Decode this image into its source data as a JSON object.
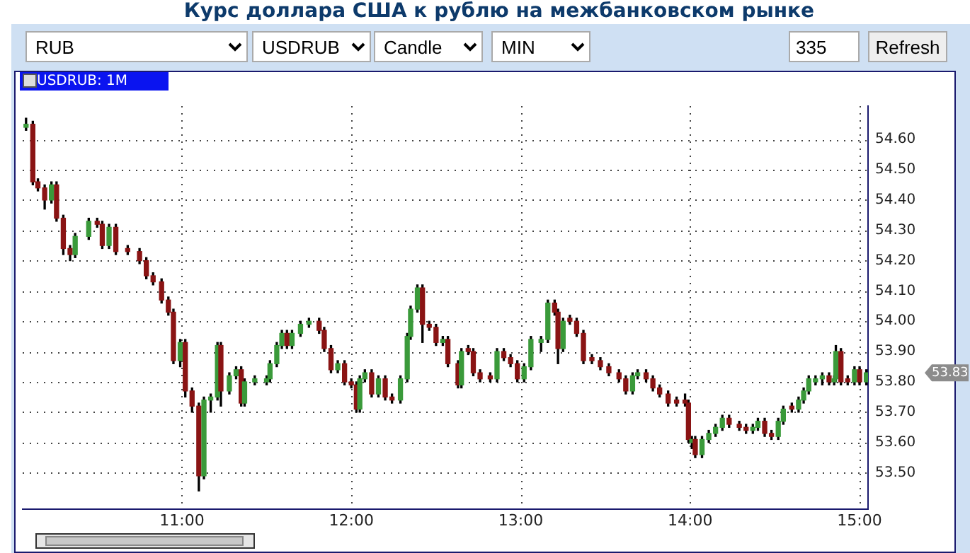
{
  "chart_data": {
    "type": "candlestick",
    "title": "Курс доллара США к рублю на межбанковском рынке",
    "annotations": [
      "RUB",
      "USDRUB",
      "Candle",
      "MIN",
      "335",
      "Refresh",
      "USDRUB: 1M",
      "53.83"
    ],
    "x": [
      10.08,
      10.12,
      10.15,
      10.19,
      10.23,
      10.26,
      10.3,
      10.34,
      10.37,
      10.45,
      10.5,
      10.53,
      10.57,
      10.61,
      10.68,
      10.75,
      10.79,
      10.83,
      10.88,
      10.92,
      10.95,
      10.99,
      11.02,
      11.06,
      11.1,
      11.13,
      11.17,
      11.21,
      11.23,
      11.28,
      11.32,
      11.35,
      11.37,
      11.43,
      11.5,
      11.52,
      11.56,
      11.59,
      11.62,
      11.65,
      11.7,
      11.75,
      11.81,
      11.84,
      11.88,
      11.92,
      11.96,
      12.0,
      12.03,
      12.05,
      12.08,
      12.12,
      12.16,
      12.2,
      12.24,
      12.29,
      12.33,
      12.35,
      12.39,
      12.42,
      12.46,
      12.5,
      12.54,
      12.57,
      12.63,
      12.65,
      12.69,
      12.72,
      12.76,
      12.82,
      12.86,
      12.9,
      12.94,
      12.98,
      13.02,
      13.06,
      13.12,
      13.16,
      13.2,
      13.22,
      13.25,
      13.29,
      13.33,
      13.37,
      13.42,
      13.47,
      13.52,
      13.58,
      13.62,
      13.66,
      13.69,
      13.74,
      13.78,
      13.82,
      13.87,
      13.92,
      13.97,
      13.99,
      14.01,
      14.03,
      14.07,
      14.11,
      14.15,
      14.19,
      14.23,
      14.29,
      14.33,
      14.37,
      14.4,
      14.44,
      14.48,
      14.52,
      14.55,
      14.6,
      14.64,
      14.67,
      14.7,
      14.74,
      14.78,
      14.82,
      14.85,
      14.86,
      14.89,
      14.93,
      14.97,
      15.0,
      15.04
    ],
    "ohlc": [
      [
        54.64,
        54.67,
        54.63,
        54.65
      ],
      [
        54.65,
        54.66,
        54.45,
        54.46
      ],
      [
        54.46,
        54.47,
        54.43,
        54.44
      ],
      [
        54.44,
        54.45,
        54.37,
        54.4
      ],
      [
        54.4,
        54.46,
        54.39,
        54.45
      ],
      [
        54.45,
        54.46,
        54.33,
        54.34
      ],
      [
        54.34,
        54.35,
        54.22,
        54.24
      ],
      [
        54.24,
        54.25,
        54.2,
        54.22
      ],
      [
        54.22,
        54.29,
        54.21,
        54.28
      ],
      [
        54.28,
        54.34,
        54.27,
        54.33
      ],
      [
        54.33,
        54.34,
        54.31,
        54.32
      ],
      [
        54.32,
        54.33,
        54.24,
        54.25
      ],
      [
        54.25,
        54.32,
        54.24,
        54.31
      ],
      [
        54.31,
        54.32,
        54.22,
        54.23
      ],
      [
        54.24,
        54.25,
        54.22,
        54.23
      ],
      [
        54.23,
        54.24,
        54.19,
        54.2
      ],
      [
        54.2,
        54.21,
        54.14,
        54.15
      ],
      [
        54.15,
        54.16,
        54.12,
        54.13
      ],
      [
        54.13,
        54.14,
        54.06,
        54.07
      ],
      [
        54.07,
        54.08,
        54.02,
        54.03
      ],
      [
        54.03,
        54.04,
        53.86,
        53.87
      ],
      [
        53.87,
        53.94,
        53.85,
        53.93
      ],
      [
        53.93,
        53.94,
        53.75,
        53.77
      ],
      [
        53.77,
        53.78,
        53.7,
        53.72
      ],
      [
        53.72,
        53.73,
        53.44,
        53.49
      ],
      [
        53.49,
        53.75,
        53.48,
        53.74
      ],
      [
        53.74,
        53.76,
        53.7,
        53.75
      ],
      [
        53.75,
        53.93,
        53.74,
        53.92
      ],
      [
        53.92,
        53.93,
        53.72,
        53.77
      ],
      [
        53.77,
        53.83,
        53.76,
        53.82
      ],
      [
        53.82,
        53.85,
        53.81,
        53.84
      ],
      [
        53.84,
        53.85,
        53.72,
        53.73
      ],
      [
        53.73,
        53.81,
        53.72,
        53.8
      ],
      [
        53.8,
        53.82,
        53.79,
        53.81
      ],
      [
        53.8,
        53.82,
        53.79,
        53.81
      ],
      [
        53.81,
        53.87,
        53.8,
        53.86
      ],
      [
        53.86,
        53.93,
        53.85,
        53.92
      ],
      [
        53.92,
        53.97,
        53.91,
        53.96
      ],
      [
        53.96,
        53.97,
        53.91,
        53.92
      ],
      [
        53.92,
        53.97,
        53.91,
        53.96
      ],
      [
        53.96,
        54.0,
        53.95,
        53.99
      ],
      [
        53.99,
        54.01,
        53.98,
        54.0
      ],
      [
        54.0,
        54.01,
        53.96,
        53.97
      ],
      [
        53.97,
        53.98,
        53.9,
        53.91
      ],
      [
        53.91,
        53.92,
        53.83,
        53.84
      ],
      [
        53.84,
        53.87,
        53.83,
        53.86
      ],
      [
        53.86,
        53.87,
        53.79,
        53.8
      ],
      [
        53.8,
        53.81,
        53.78,
        53.79
      ],
      [
        53.79,
        53.8,
        53.7,
        53.71
      ],
      [
        53.71,
        53.82,
        53.7,
        53.81
      ],
      [
        53.81,
        53.84,
        53.8,
        53.83
      ],
      [
        53.83,
        53.84,
        53.75,
        53.76
      ],
      [
        53.76,
        53.82,
        53.75,
        53.81
      ],
      [
        53.81,
        53.82,
        53.74,
        53.75
      ],
      [
        53.75,
        53.76,
        53.73,
        53.74
      ],
      [
        53.74,
        53.82,
        53.73,
        53.81
      ],
      [
        53.81,
        53.96,
        53.8,
        53.95
      ],
      [
        53.95,
        54.05,
        53.94,
        54.04
      ],
      [
        54.04,
        54.12,
        54.03,
        54.11
      ],
      [
        54.11,
        54.12,
        53.93,
        53.99
      ],
      [
        53.99,
        54.0,
        53.97,
        53.98
      ],
      [
        53.98,
        53.99,
        53.92,
        53.93
      ],
      [
        53.93,
        53.95,
        53.92,
        53.94
      ],
      [
        53.94,
        53.95,
        53.85,
        53.86
      ],
      [
        53.86,
        53.87,
        53.78,
        53.79
      ],
      [
        53.79,
        53.91,
        53.78,
        53.9
      ],
      [
        53.91,
        53.92,
        53.89,
        53.9
      ],
      [
        53.9,
        53.91,
        53.82,
        53.83
      ],
      [
        53.83,
        53.84,
        53.8,
        53.81
      ],
      [
        53.82,
        53.83,
        53.8,
        53.81
      ],
      [
        53.81,
        53.91,
        53.8,
        53.9
      ],
      [
        53.9,
        53.91,
        53.87,
        53.88
      ],
      [
        53.88,
        53.89,
        53.85,
        53.86
      ],
      [
        53.86,
        53.87,
        53.8,
        53.81
      ],
      [
        53.81,
        53.86,
        53.8,
        53.85
      ],
      [
        53.85,
        53.95,
        53.84,
        53.94
      ],
      [
        53.93,
        53.95,
        53.9,
        53.94
      ],
      [
        53.94,
        54.07,
        53.93,
        54.06
      ],
      [
        54.06,
        54.07,
        54.02,
        54.03
      ],
      [
        54.03,
        54.04,
        53.86,
        53.91
      ],
      [
        53.91,
        54.01,
        53.9,
        54.0
      ],
      [
        54.01,
        54.02,
        53.99,
        54.0
      ],
      [
        54.0,
        54.01,
        53.95,
        53.96
      ],
      [
        53.96,
        53.97,
        53.86,
        53.87
      ],
      [
        53.88,
        53.89,
        53.86,
        53.87
      ],
      [
        53.87,
        53.88,
        53.84,
        53.85
      ],
      [
        53.85,
        53.86,
        53.82,
        53.83
      ],
      [
        53.83,
        53.84,
        53.8,
        53.81
      ],
      [
        53.81,
        53.82,
        53.76,
        53.77
      ],
      [
        53.77,
        53.83,
        53.76,
        53.82
      ],
      [
        53.82,
        53.84,
        53.81,
        53.83
      ],
      [
        53.83,
        53.84,
        53.8,
        53.81
      ],
      [
        53.81,
        53.82,
        53.77,
        53.78
      ],
      [
        53.78,
        53.79,
        53.75,
        53.76
      ],
      [
        53.76,
        53.77,
        53.72,
        53.73
      ],
      [
        53.74,
        53.75,
        53.72,
        53.73
      ],
      [
        53.74,
        53.76,
        53.72,
        53.73
      ],
      [
        53.73,
        53.74,
        53.6,
        53.61
      ],
      [
        53.6,
        53.62,
        53.58,
        53.61
      ],
      [
        53.61,
        53.62,
        53.55,
        53.56
      ],
      [
        53.56,
        53.62,
        53.55,
        53.61
      ],
      [
        53.61,
        53.64,
        53.6,
        53.63
      ],
      [
        53.63,
        53.66,
        53.62,
        53.65
      ],
      [
        53.65,
        53.69,
        53.64,
        53.68
      ],
      [
        53.68,
        53.69,
        53.65,
        53.66
      ],
      [
        53.66,
        53.67,
        53.64,
        53.65
      ],
      [
        53.65,
        53.66,
        53.63,
        53.64
      ],
      [
        53.64,
        53.66,
        53.63,
        53.65
      ],
      [
        53.65,
        53.68,
        53.64,
        53.67
      ],
      [
        53.67,
        53.68,
        53.62,
        53.63
      ],
      [
        53.63,
        53.64,
        53.61,
        53.62
      ],
      [
        53.62,
        53.68,
        53.61,
        53.67
      ],
      [
        53.67,
        53.72,
        53.66,
        53.71
      ],
      [
        53.72,
        53.73,
        53.7,
        53.71
      ],
      [
        53.71,
        53.75,
        53.7,
        53.74
      ],
      [
        53.74,
        53.78,
        53.73,
        53.77
      ],
      [
        53.77,
        53.82,
        53.76,
        53.81
      ],
      [
        53.8,
        53.82,
        53.79,
        53.81
      ],
      [
        53.81,
        53.83,
        53.79,
        53.82
      ],
      [
        53.82,
        53.83,
        53.79,
        53.8
      ],
      [
        53.8,
        53.82,
        53.79,
        53.81
      ],
      [
        53.81,
        53.92,
        53.8,
        53.9
      ],
      [
        53.9,
        53.91,
        53.79,
        53.8
      ],
      [
        53.81,
        53.82,
        53.79,
        53.8
      ],
      [
        53.8,
        53.85,
        53.79,
        53.84
      ],
      [
        53.84,
        53.85,
        53.79,
        53.8
      ],
      [
        53.8,
        53.84,
        53.79,
        53.83
      ]
    ],
    "xlim": [
      10.06,
      15.05
    ],
    "xticks": [
      {
        "value": 11,
        "label": "11:00"
      },
      {
        "value": 12,
        "label": "12:00"
      },
      {
        "value": 13,
        "label": "13:00"
      },
      {
        "value": 14,
        "label": "14:00"
      },
      {
        "value": 15,
        "label": "15:00"
      }
    ],
    "ylim": [
      53.38,
      54.71
    ],
    "yticks": [
      {
        "value": 53.5,
        "label": "53.50"
      },
      {
        "value": 53.6,
        "label": "53.60"
      },
      {
        "value": 53.7,
        "label": "53.70"
      },
      {
        "value": 53.8,
        "label": "53.80"
      },
      {
        "value": 53.9,
        "label": "53.90"
      },
      {
        "value": 54,
        "label": "54.00"
      },
      {
        "value": 54.1,
        "label": "54.10"
      },
      {
        "value": 54.2,
        "label": "54.20"
      },
      {
        "value": 54.3,
        "label": "54.30"
      },
      {
        "value": 54.4,
        "label": "54.40"
      },
      {
        "value": 54.5,
        "label": "54.50"
      },
      {
        "value": 54.6,
        "label": "54.60"
      }
    ],
    "grid": true
  }
}
